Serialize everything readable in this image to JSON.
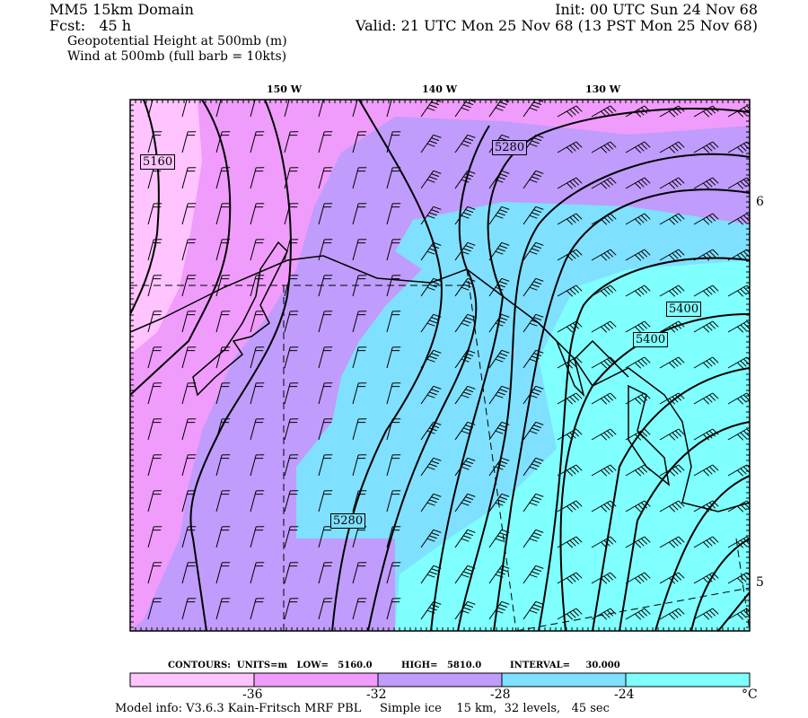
{
  "header": {
    "domain": "MM5 15km Domain",
    "init": "Init: 00 UTC Sun 24 Nov 68",
    "fcst": "Fcst:   45 h",
    "valid": "Valid: 21 UTC Mon 25 Nov 68 (13 PST Mon 25 Nov 68)",
    "field1": "Geopotential Height at 500mb (m)",
    "field2": "Wind at 500mb (full barb = 10kts)"
  },
  "map": {
    "lon_labels": [
      "150 W",
      "140 W",
      "130 W"
    ],
    "lat_labels": [
      "6",
      "5"
    ],
    "contour_labels": [
      "5160",
      "5280",
      "5280",
      "5400",
      "5400"
    ],
    "colors": {
      "pink_light": "#ffc4ff",
      "magenta": "#f09cfc",
      "purple": "#c09cfc",
      "blue": "#80e0ff",
      "cyan": "#80ffff"
    }
  },
  "legend": {
    "contours": "CONTOURS:  UNITS=m   LOW=   5160.0",
    "high": "HIGH=   5810.0",
    "interval": "INTERVAL=     30.000",
    "ticks": [
      "-36",
      "-32",
      "-28",
      "-24"
    ],
    "unit": "°C",
    "bins": [
      "#ffc4ff",
      "#f09cfc",
      "#c09cfc",
      "#80e0ff",
      "#80ffff"
    ]
  },
  "footer": {
    "model_info": "Model info: V3.6.3 Kain-Fritsch MRF PBL     Simple ice    15 km,  32 levels,   45 sec"
  }
}
